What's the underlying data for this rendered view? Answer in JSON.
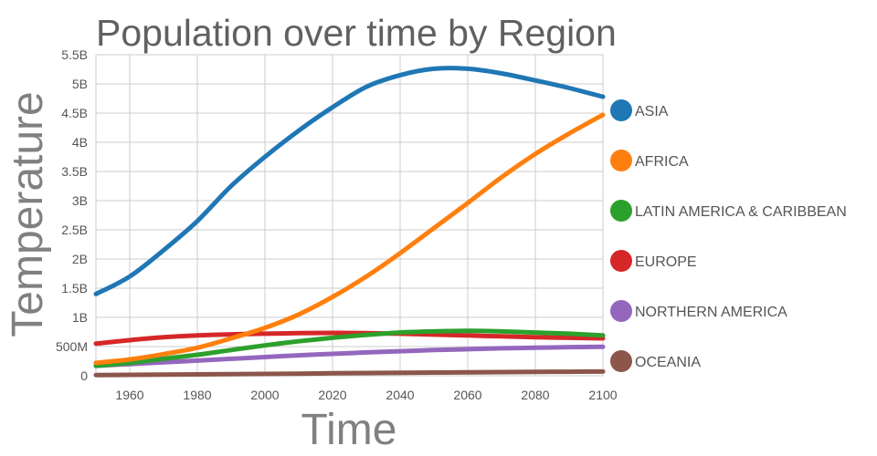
{
  "chart_data": {
    "type": "line",
    "title": "Population over time by Region",
    "xlabel": "Time",
    "ylabel": "Temperature",
    "xlim": [
      1950,
      2100
    ],
    "ylim": [
      0,
      5500000000
    ],
    "x_ticks": [
      1960,
      1980,
      2000,
      2020,
      2040,
      2060,
      2080,
      2100
    ],
    "y_ticks": [
      {
        "value": 0,
        "label": "0"
      },
      {
        "value": 500000000,
        "label": "500M"
      },
      {
        "value": 1000000000,
        "label": "1B"
      },
      {
        "value": 1500000000,
        "label": "1.5B"
      },
      {
        "value": 2000000000,
        "label": "2B"
      },
      {
        "value": 2500000000,
        "label": "2.5B"
      },
      {
        "value": 3000000000,
        "label": "3B"
      },
      {
        "value": 3500000000,
        "label": "3.5B"
      },
      {
        "value": 4000000000,
        "label": "4B"
      },
      {
        "value": 4500000000,
        "label": "4.5B"
      },
      {
        "value": 5000000000,
        "label": "5B"
      },
      {
        "value": 5500000000,
        "label": "5.5B"
      }
    ],
    "grid": true,
    "legend_position": "right",
    "x": [
      1950,
      1960,
      1970,
      1980,
      1990,
      2000,
      2010,
      2020,
      2030,
      2040,
      2050,
      2060,
      2070,
      2080,
      2090,
      2100
    ],
    "series": [
      {
        "name": "ASIA",
        "color": "#1f77b4",
        "values": [
          1400000000,
          1700000000,
          2150000000,
          2650000000,
          3250000000,
          3750000000,
          4200000000,
          4600000000,
          4950000000,
          5150000000,
          5260000000,
          5260000000,
          5180000000,
          5060000000,
          4930000000,
          4780000000
        ]
      },
      {
        "name": "AFRICA",
        "color": "#ff7f0e",
        "values": [
          220000000,
          280000000,
          370000000,
          480000000,
          640000000,
          820000000,
          1050000000,
          1350000000,
          1700000000,
          2100000000,
          2530000000,
          2960000000,
          3400000000,
          3800000000,
          4150000000,
          4470000000
        ]
      },
      {
        "name": "LATIN AMERICA & CARIBBEAN",
        "color": "#2ca02c",
        "values": [
          170000000,
          220000000,
          290000000,
          360000000,
          440000000,
          520000000,
          590000000,
          650000000,
          700000000,
          740000000,
          760000000,
          770000000,
          760000000,
          740000000,
          720000000,
          690000000
        ]
      },
      {
        "name": "EUROPE",
        "color": "#d62728",
        "values": [
          550000000,
          610000000,
          660000000,
          690000000,
          710000000,
          720000000,
          730000000,
          735000000,
          730000000,
          720000000,
          705000000,
          690000000,
          675000000,
          660000000,
          650000000,
          640000000
        ]
      },
      {
        "name": "NORTHERN AMERICA",
        "color": "#9467bd",
        "values": [
          170000000,
          200000000,
          230000000,
          260000000,
          290000000,
          320000000,
          350000000,
          375000000,
          400000000,
          420000000,
          440000000,
          455000000,
          470000000,
          480000000,
          490000000,
          495000000
        ]
      },
      {
        "name": "OCEANIA",
        "color": "#8c564b",
        "values": [
          13000000,
          16000000,
          20000000,
          23000000,
          27000000,
          31000000,
          36000000,
          42000000,
          47000000,
          51000000,
          55000000,
          59000000,
          62000000,
          66000000,
          69000000,
          72000000
        ]
      }
    ]
  }
}
